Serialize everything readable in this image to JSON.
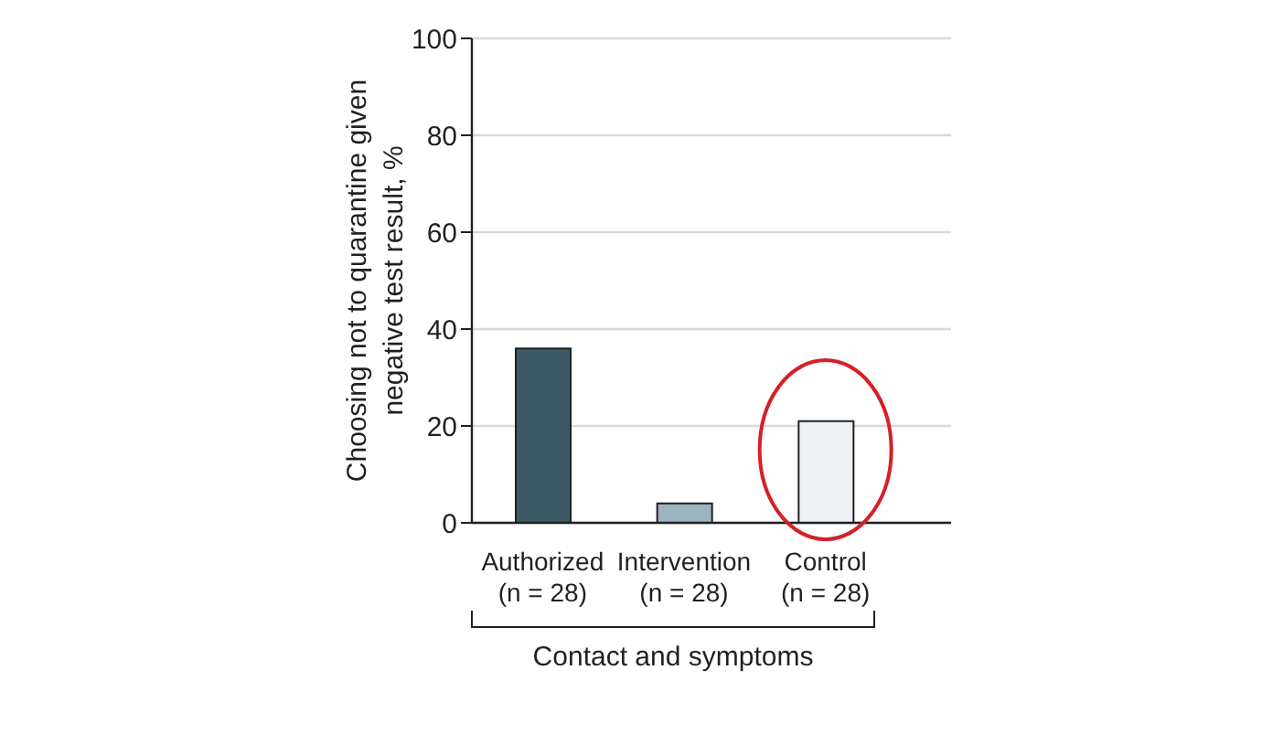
{
  "chart_data": {
    "type": "bar",
    "categories": [
      "Authorized\n(n = 28)",
      "Intervention\n(n = 28)",
      "Control\n(n = 28)"
    ],
    "values": [
      36,
      4,
      21
    ],
    "colors": [
      "#3b5a66",
      "#9cb4c1",
      "#eef2f4"
    ],
    "xlabel": "Contact and symptoms",
    "ylabel": "Choosing not to quarantine given\nnegative test result, %",
    "ylim": [
      0,
      100
    ],
    "yticks": [
      0,
      20,
      40,
      60,
      80,
      100
    ],
    "grid": "y"
  }
}
